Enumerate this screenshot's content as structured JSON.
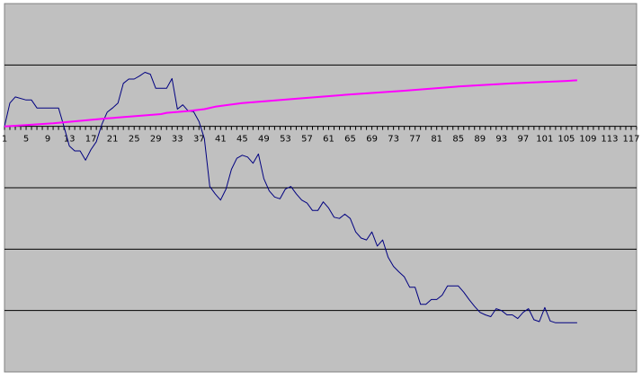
{
  "chart_data": {
    "type": "line",
    "title": "",
    "xlabel": "",
    "ylabel": "",
    "x_tick_labels": [
      "1",
      "5",
      "9",
      "13",
      "17",
      "21",
      "25",
      "29",
      "33",
      "37",
      "41",
      "45",
      "49",
      "53",
      "57",
      "61",
      "65",
      "69",
      "73",
      "77",
      "81",
      "85",
      "89",
      "93",
      "97",
      "101",
      "105",
      "109",
      "113",
      "117"
    ],
    "x_range": [
      1,
      118
    ],
    "y_range": [
      -4,
      2
    ],
    "grid": "horizontal",
    "legend": "none",
    "colors": {
      "plot_background": "#c0c0c0",
      "gridline": "#000000",
      "axis": "#000000"
    },
    "series": [
      {
        "color": "#000080",
        "x": [
          1,
          2,
          3,
          5,
          6,
          7,
          8,
          9,
          10,
          11,
          12,
          13,
          14,
          15,
          16,
          17,
          18,
          19,
          20,
          21,
          22,
          23,
          24,
          25,
          26,
          27,
          28,
          29,
          30,
          31,
          32,
          33,
          34,
          35,
          36,
          37,
          38,
          39,
          40,
          41,
          42,
          43,
          44,
          45,
          46,
          47,
          48,
          49,
          50,
          51,
          52,
          53,
          54,
          55,
          56,
          57,
          58,
          59,
          60,
          61,
          62,
          63,
          64,
          65,
          66,
          67,
          68,
          69,
          70,
          71,
          72,
          73,
          74,
          75,
          76,
          77,
          78,
          79,
          80,
          81,
          82,
          83,
          84,
          85,
          86,
          87,
          88,
          89,
          90,
          91,
          92,
          93,
          94,
          95,
          96,
          97,
          98,
          99,
          100,
          101,
          102,
          103,
          104,
          105,
          106,
          107
        ],
        "values": [
          0.0,
          0.38,
          0.48,
          0.43,
          0.43,
          0.3,
          0.3,
          0.3,
          0.3,
          0.3,
          0.0,
          -0.32,
          -0.4,
          -0.4,
          -0.55,
          -0.38,
          -0.25,
          0.03,
          0.23,
          0.3,
          0.38,
          0.7,
          0.77,
          0.77,
          0.82,
          0.88,
          0.85,
          0.62,
          0.62,
          0.62,
          0.78,
          0.28,
          0.35,
          0.25,
          0.24,
          0.08,
          -0.2,
          -0.98,
          -1.1,
          -1.2,
          -1.02,
          -0.7,
          -0.52,
          -0.47,
          -0.5,
          -0.6,
          -0.45,
          -0.85,
          -1.05,
          -1.15,
          -1.18,
          -1.02,
          -0.98,
          -1.1,
          -1.2,
          -1.25,
          -1.37,
          -1.37,
          -1.23,
          -1.33,
          -1.48,
          -1.5,
          -1.43,
          -1.5,
          -1.72,
          -1.82,
          -1.85,
          -1.72,
          -1.95,
          -1.85,
          -2.13,
          -2.28,
          -2.37,
          -2.45,
          -2.62,
          -2.62,
          -2.9,
          -2.9,
          -2.82,
          -2.82,
          -2.75,
          -2.6,
          -2.6,
          -2.6,
          -2.7,
          -2.82,
          -2.93,
          -3.03,
          -3.07,
          -3.1,
          -2.97,
          -3.0,
          -3.07,
          -3.07,
          -3.13,
          -3.03,
          -2.97,
          -3.15,
          -3.18,
          -2.95,
          -3.17,
          -3.2,
          -3.2,
          -3.2,
          -3.2,
          -3.2
        ],
        "values_note": ""
      },
      {
        "color": "#ff00ff",
        "x": [
          1,
          10,
          20,
          30,
          31,
          35,
          38,
          40,
          45,
          55,
          65,
          75,
          85,
          95,
          105,
          107
        ],
        "values": [
          0.0,
          0.05,
          0.13,
          0.2,
          0.22,
          0.25,
          0.28,
          0.32,
          0.38,
          0.45,
          0.52,
          0.58,
          0.65,
          0.7,
          0.74,
          0.75
        ]
      }
    ]
  }
}
